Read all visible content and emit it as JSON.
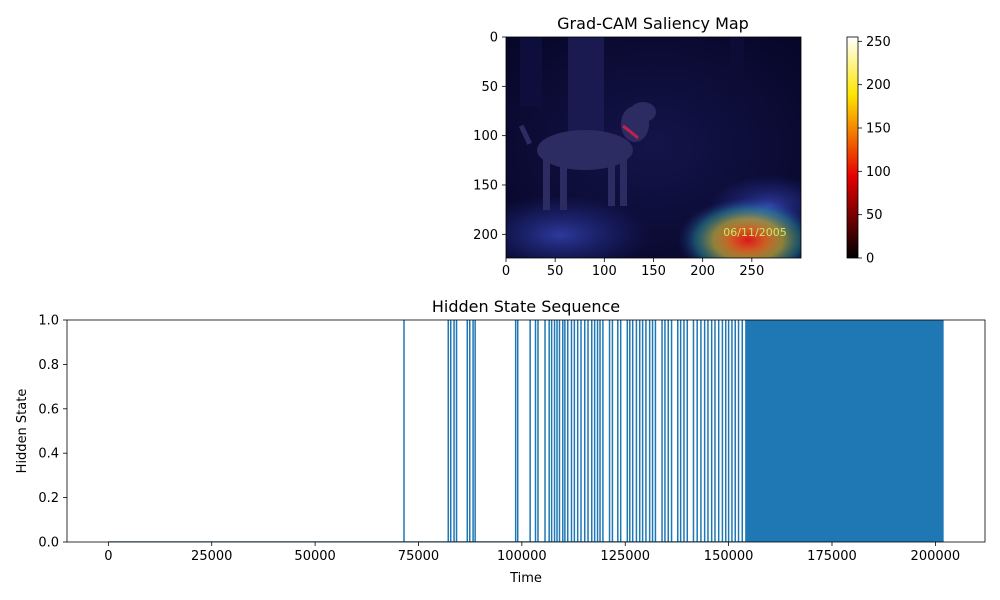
{
  "chart_data": [
    {
      "type": "heatmap",
      "title": "Grad-CAM Saliency Map",
      "image_note_text": "06/11/2005",
      "xlim": [
        0,
        300
      ],
      "ylim": [
        224,
        0
      ],
      "xticks": [
        0,
        50,
        100,
        150,
        200,
        250
      ],
      "yticks": [
        0,
        50,
        100,
        150,
        200
      ],
      "colorbar": {
        "colormap": "hot",
        "range": [
          0,
          255
        ],
        "ticks": [
          0,
          50,
          100,
          150,
          200,
          250
        ]
      },
      "hotspot": {
        "x": 250,
        "y": 215,
        "intensity": 255
      },
      "colors": {
        "background": "#0a0a3a",
        "overlay_hot": "#e8202a",
        "overlay_warm": "#f0c030",
        "overlay_cool": "#3a5ad8"
      }
    },
    {
      "type": "line",
      "title": "Hidden State Sequence",
      "xlabel": "Time",
      "ylabel": "Hidden State",
      "xlim": [
        -10000,
        212000
      ],
      "ylim": [
        0.0,
        1.0
      ],
      "xticks": [
        0,
        25000,
        50000,
        75000,
        100000,
        125000,
        150000,
        175000,
        200000
      ],
      "yticks": [
        0.0,
        0.2,
        0.4,
        0.6,
        0.8,
        1.0
      ],
      "ytick_labels": [
        "0.0",
        "0.2",
        "0.4",
        "0.6",
        "0.8",
        "1.0"
      ],
      "series_color": "#1f77b4",
      "time_range": [
        0,
        202000
      ],
      "spikes": [
        71500,
        82200,
        82800,
        83600,
        84200,
        86800,
        87400,
        88200,
        88700,
        98500,
        99000,
        102000,
        103300,
        103900,
        105600,
        106600,
        107200,
        107900,
        108500,
        109100,
        109900,
        110400,
        111100,
        112000,
        112700,
        113500,
        114300,
        115200,
        116000,
        116900,
        117600,
        118300,
        118900,
        119600,
        121200,
        121900,
        123200,
        123900,
        125500,
        126100,
        126800,
        127700,
        128500,
        129200,
        130000,
        130900,
        131600,
        132300,
        133900,
        134600,
        135400,
        136200,
        137700,
        138400,
        139200,
        140000,
        141500,
        142400,
        143300,
        144200,
        145000,
        145900,
        146700,
        147600,
        148500,
        149300,
        150000,
        150800,
        151600,
        152400,
        153300
      ],
      "dense_block": [
        154000,
        202000
      ]
    }
  ]
}
